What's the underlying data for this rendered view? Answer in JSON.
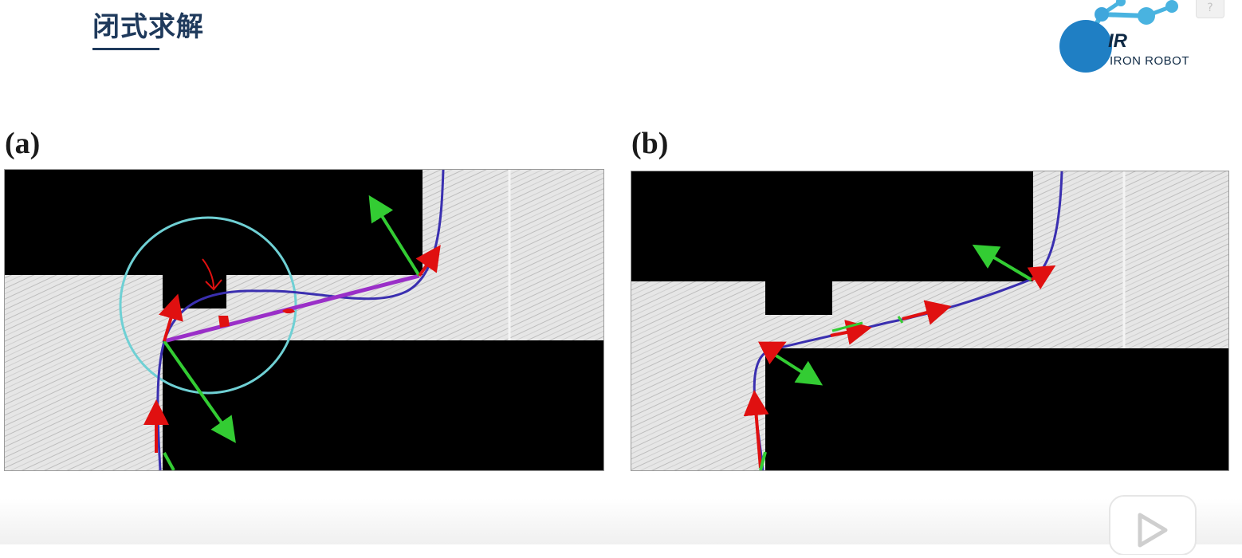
{
  "slide": {
    "title": "闭式求解"
  },
  "logo": {
    "mark": "IR",
    "name": "IRON ROBOT",
    "accent_color": "#1f7fc4",
    "light_color": "#49b3e0"
  },
  "help": {
    "glyph": "?"
  },
  "figure": {
    "panel_a_label": "(a)",
    "panel_b_label": "(b)",
    "colors": {
      "obstacle": "#000000",
      "free_space": "#e4e4e4",
      "path": "#3a2fb0",
      "straight_segment": "#9a2fc8",
      "circle": "#6fd0d4",
      "red_arrow": "#e01010",
      "green_arrow": "#33cc33"
    }
  },
  "player": {
    "icon": "play-icon"
  }
}
